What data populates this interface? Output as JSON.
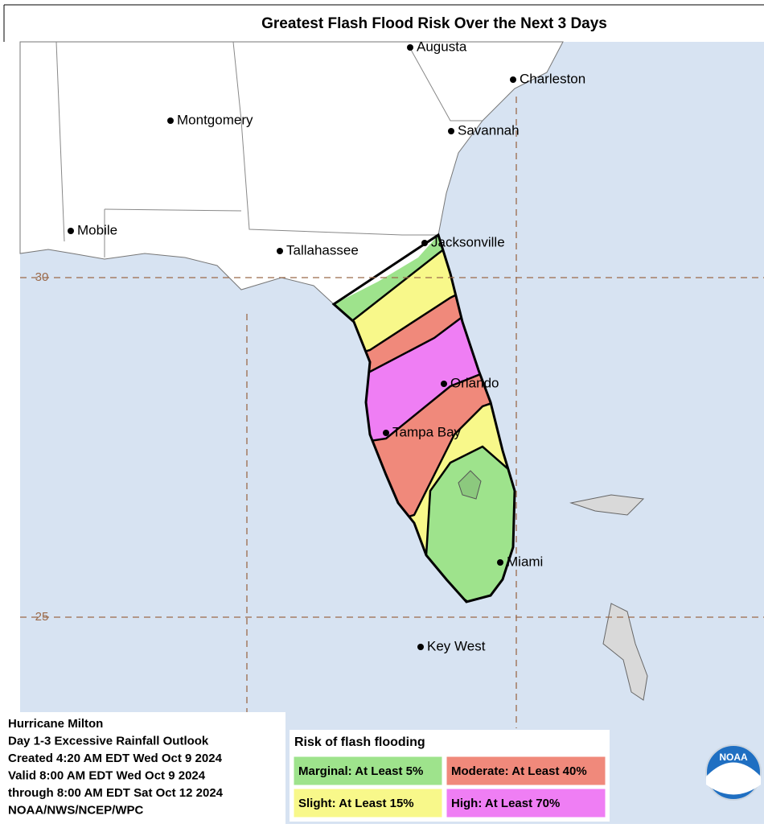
{
  "title": "Greatest Flash Flood Risk Over the Next 3 Days",
  "cities": [
    "Augusta",
    "Charleston",
    "Montgomery",
    "Savannah",
    "Mobile",
    "Tallahassee",
    "Jacksonville",
    "Orlando",
    "Tampa Bay",
    "Miami",
    "Key West"
  ],
  "latitude_labels": [
    "30",
    "25"
  ],
  "info": [
    "Hurricane Milton",
    "Day 1-3 Excessive Rainfall Outlook",
    "Created 4:20 AM EDT Wed Oct 9 2024",
    "Valid 8:00 AM EDT Wed Oct 9 2024",
    "through 8:00 AM EDT Sat Oct 12 2024",
    "NOAA/NWS/NCEP/WPC"
  ],
  "legend": {
    "title": "Risk of flash flooding",
    "items": [
      "Marginal: At Least 5%",
      "Moderate: At Least 40%",
      "Slight: At Least 15%",
      "High: At Least 70%"
    ]
  },
  "logo": "NOAA"
}
